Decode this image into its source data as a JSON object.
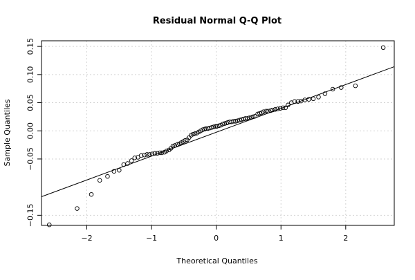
{
  "chart_data": {
    "type": "scatter",
    "title": "Residual Normal Q-Q Plot",
    "xlabel": "Theoretical Quantiles",
    "ylabel": "Sample Quantiles",
    "xlim": [
      -2.7,
      2.75
    ],
    "ylim": [
      -0.168,
      0.16
    ],
    "x_ticks": [
      -2,
      -1,
      0,
      1,
      2
    ],
    "x_tick_labels": [
      "−2",
      "−1",
      "0",
      "1",
      "2"
    ],
    "y_ticks": [
      -0.15,
      -0.05,
      0.0,
      0.05,
      0.1,
      0.15
    ],
    "y_tick_labels": [
      "−0.15",
      "−0.05",
      "0.00",
      "0.05",
      "0.10",
      "0.15"
    ],
    "grid": true,
    "reference_line": {
      "x1": -2.7,
      "y1": -0.117,
      "x2": 2.75,
      "y2": 0.114
    },
    "points": {
      "x": [
        -2.58,
        -2.15,
        -1.93,
        -1.8,
        -1.68,
        -1.58,
        -1.5,
        -1.43,
        -1.37,
        -1.31,
        -1.26,
        -1.21,
        -1.16,
        -1.11,
        -1.07,
        -1.03,
        -0.99,
        -0.95,
        -0.91,
        -0.87,
        -0.84,
        -0.8,
        -0.77,
        -0.73,
        -0.7,
        -0.67,
        -0.64,
        -0.6,
        -0.57,
        -0.54,
        -0.51,
        -0.48,
        -0.45,
        -0.42,
        -0.39,
        -0.36,
        -0.33,
        -0.3,
        -0.27,
        -0.24,
        -0.21,
        -0.18,
        -0.16,
        -0.13,
        -0.1,
        -0.07,
        -0.04,
        -0.01,
        0.01,
        0.04,
        0.07,
        0.1,
        0.13,
        0.16,
        0.18,
        0.21,
        0.24,
        0.27,
        0.3,
        0.33,
        0.36,
        0.39,
        0.42,
        0.45,
        0.48,
        0.51,
        0.54,
        0.57,
        0.6,
        0.64,
        0.67,
        0.7,
        0.73,
        0.77,
        0.8,
        0.84,
        0.87,
        0.91,
        0.95,
        0.99,
        1.03,
        1.07,
        1.11,
        1.16,
        1.21,
        1.26,
        1.31,
        1.37,
        1.43,
        1.5,
        1.58,
        1.68,
        1.8,
        1.93,
        2.15,
        2.58
      ],
      "y": [
        -0.167,
        -0.138,
        -0.113,
        -0.088,
        -0.081,
        -0.072,
        -0.07,
        -0.06,
        -0.058,
        -0.053,
        -0.048,
        -0.047,
        -0.044,
        -0.043,
        -0.042,
        -0.042,
        -0.041,
        -0.04,
        -0.04,
        -0.039,
        -0.039,
        -0.038,
        -0.036,
        -0.034,
        -0.031,
        -0.027,
        -0.026,
        -0.024,
        -0.023,
        -0.021,
        -0.019,
        -0.017,
        -0.016,
        -0.012,
        -0.008,
        -0.006,
        -0.005,
        -0.004,
        -0.002,
        0.0,
        0.002,
        0.003,
        0.004,
        0.004,
        0.005,
        0.006,
        0.007,
        0.008,
        0.008,
        0.009,
        0.01,
        0.012,
        0.013,
        0.014,
        0.015,
        0.016,
        0.016,
        0.017,
        0.017,
        0.018,
        0.019,
        0.02,
        0.021,
        0.022,
        0.022,
        0.023,
        0.024,
        0.025,
        0.026,
        0.03,
        0.031,
        0.032,
        0.034,
        0.035,
        0.035,
        0.036,
        0.037,
        0.038,
        0.039,
        0.04,
        0.041,
        0.041,
        0.046,
        0.05,
        0.052,
        0.052,
        0.053,
        0.055,
        0.056,
        0.057,
        0.06,
        0.066,
        0.074,
        0.077,
        0.08,
        0.148
      ]
    }
  }
}
